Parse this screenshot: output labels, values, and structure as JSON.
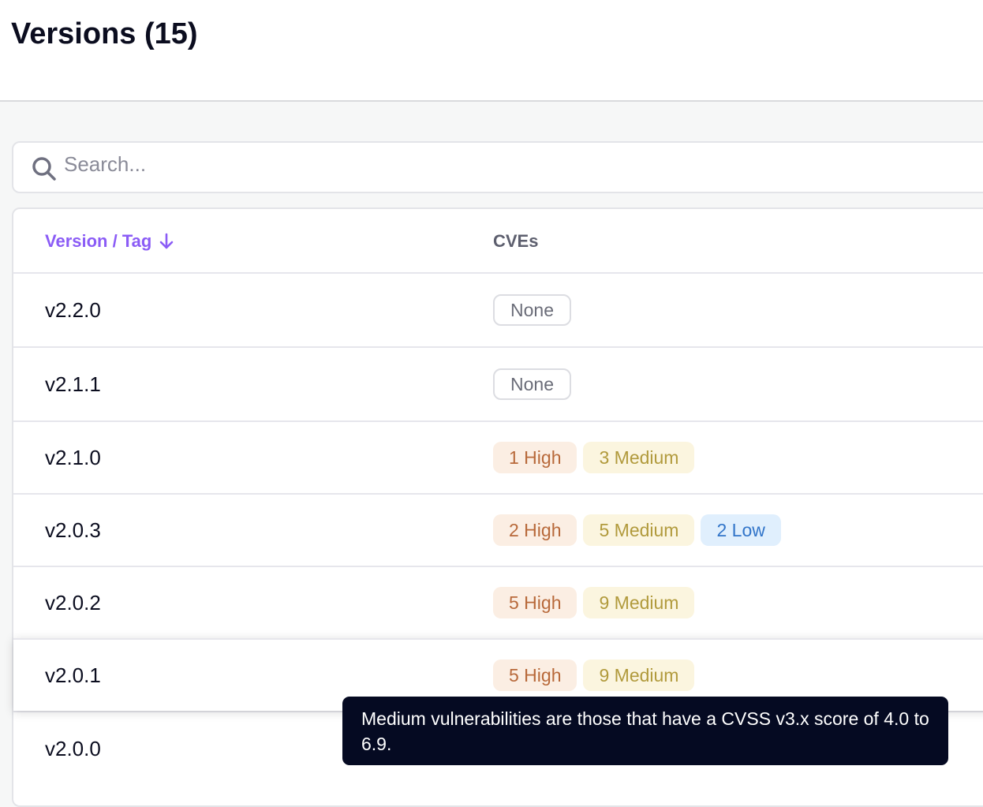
{
  "header": {
    "title": "Versions (15)"
  },
  "search": {
    "placeholder": "Search..."
  },
  "table": {
    "columns": {
      "version": "Version / Tag",
      "sort_icon": "arrow-down-icon",
      "cves": "CVEs"
    },
    "rows": [
      {
        "version": "v2.2.0",
        "badges": [
          {
            "label": "None",
            "type": "none"
          }
        ]
      },
      {
        "version": "v2.1.1",
        "badges": [
          {
            "label": "None",
            "type": "none"
          }
        ]
      },
      {
        "version": "v2.1.0",
        "badges": [
          {
            "label": "1 High",
            "type": "high"
          },
          {
            "label": "3 Medium",
            "type": "medium"
          }
        ]
      },
      {
        "version": "v2.0.3",
        "badges": [
          {
            "label": "2 High",
            "type": "high"
          },
          {
            "label": "5 Medium",
            "type": "medium"
          },
          {
            "label": "2 Low",
            "type": "low"
          }
        ]
      },
      {
        "version": "v2.0.2",
        "badges": [
          {
            "label": "5 High",
            "type": "high"
          },
          {
            "label": "9 Medium",
            "type": "medium"
          }
        ]
      },
      {
        "version": "v2.0.1",
        "badges": [
          {
            "label": "5 High",
            "type": "high"
          },
          {
            "label": "9 Medium",
            "type": "medium"
          }
        ]
      },
      {
        "version": "v2.0.0",
        "badges": []
      }
    ]
  },
  "tooltip": {
    "text": "Medium vulnerabilities are those that have a CVSS v3.x score of 4.0 to 6.9."
  },
  "colors": {
    "accent": "#8b5cf6",
    "high": "#b8693a",
    "medium": "#b19a3c",
    "low": "#3275c9",
    "tooltip_bg": "#050a22"
  }
}
